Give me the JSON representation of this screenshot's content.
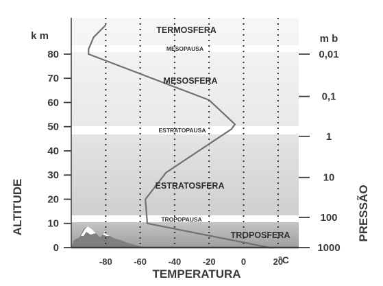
{
  "chart_data": {
    "type": "line",
    "x_axis": {
      "label": "TEMPERATURA",
      "unit": "°C",
      "ticks": [
        "-80",
        "-60",
        "-40",
        "-20",
        "0",
        "20"
      ],
      "tick_values": [
        -80,
        -60,
        -40,
        -20,
        0,
        20
      ],
      "range": [
        -100,
        32
      ],
      "gridlines": "dotted"
    },
    "y_axis_left": {
      "label": "ALTITUDE",
      "unit": "k m",
      "ticks": [
        "0",
        "10",
        "20",
        "30",
        "40",
        "50",
        "60",
        "70",
        "80"
      ],
      "tick_values": [
        0,
        10,
        20,
        30,
        40,
        50,
        60,
        70,
        80
      ],
      "range": [
        0,
        95
      ]
    },
    "y_axis_right": {
      "label": "PRESSÃO",
      "unit": "m b",
      "ticks": [
        {
          "label": "1000",
          "altitude": 0
        },
        {
          "label": "100",
          "altitude": 12.5
        },
        {
          "label": "10",
          "altitude": 29
        },
        {
          "label": "1",
          "altitude": 46
        },
        {
          "label": "0,1",
          "altitude": 62.5
        },
        {
          "label": "0,01",
          "altitude": 80
        }
      ]
    },
    "series": [
      {
        "points": [
          [
            15,
            0
          ],
          [
            -56,
            10
          ],
          [
            -56,
            11
          ],
          [
            -57,
            20
          ],
          [
            -45,
            31
          ],
          [
            -7,
            49
          ],
          [
            -5,
            51
          ],
          [
            -20,
            61
          ],
          [
            -90,
            80
          ],
          [
            -90,
            82
          ],
          [
            -87,
            87
          ],
          [
            -80,
            92
          ]
        ]
      }
    ],
    "layers": [
      {
        "name": "TROPOSFERA",
        "from": 0,
        "to": 10
      },
      {
        "name": "ESTRATOSFERA",
        "from": 13,
        "to": 47
      },
      {
        "name": "MESOSFERA",
        "from": 51,
        "to": 81
      },
      {
        "name": "TERMOSFERA",
        "from": 84,
        "to": 95
      }
    ],
    "pauses": [
      {
        "name": "TROPOPAUSA",
        "altitude": 11.5
      },
      {
        "name": "ESTRATOPAUSA",
        "altitude": 49
      },
      {
        "name": "MESOPAUSA",
        "altitude": 82.5
      }
    ],
    "colors": {
      "line": "#707070",
      "stratosphere": "#d9d9d9",
      "troposphere": "#a5a5a5",
      "pause_band": "#ffffff",
      "text": "#3a3a3a",
      "mountain_dark": "#7f7f7f",
      "mountain_snow": "#ffffff"
    }
  }
}
